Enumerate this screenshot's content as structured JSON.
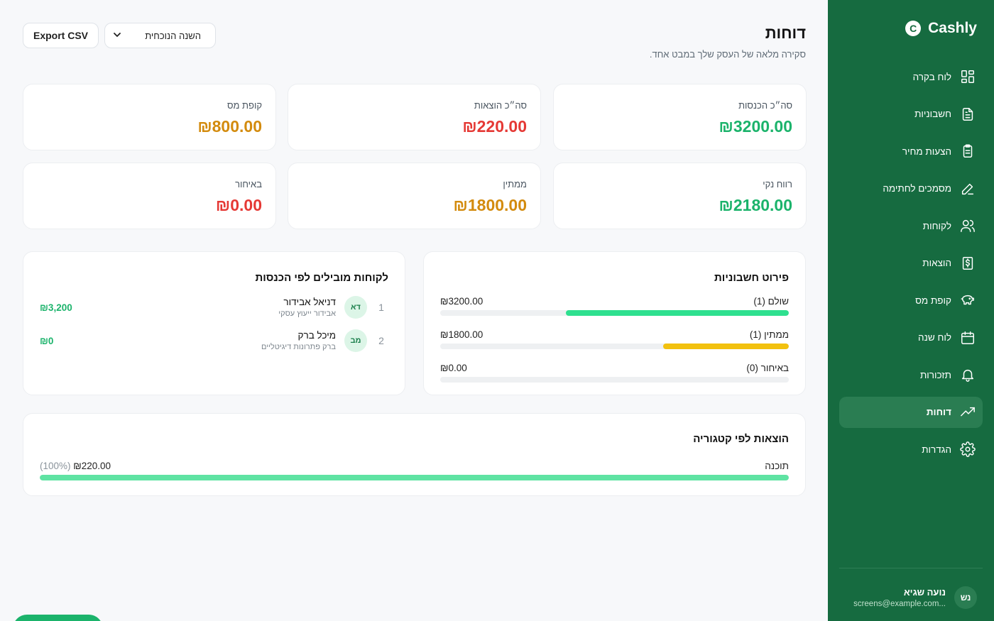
{
  "app": {
    "name": "Cashly",
    "logo_letter": "C"
  },
  "sidebar": {
    "items": [
      {
        "label": "לוח בקרה",
        "icon": "dashboard-grid-icon",
        "active": false
      },
      {
        "label": "חשבוניות",
        "icon": "document-icon",
        "active": false
      },
      {
        "label": "הצעות מחיר",
        "icon": "clipboard-icon",
        "active": false
      },
      {
        "label": "מסמכים לחתימה",
        "icon": "pen-icon",
        "active": false
      },
      {
        "label": "לקוחות",
        "icon": "users-icon",
        "active": false
      },
      {
        "label": "הוצאות",
        "icon": "receipt-icon",
        "active": false
      },
      {
        "label": "קופת מס",
        "icon": "piggy-bank-icon",
        "active": false
      },
      {
        "label": "לוח שנה",
        "icon": "calendar-icon",
        "active": false
      },
      {
        "label": "תזכורות",
        "icon": "bell-icon",
        "active": false
      },
      {
        "label": "דוחות",
        "icon": "trending-up-icon",
        "active": true
      },
      {
        "label": "הגדרות",
        "icon": "gear-icon",
        "active": false
      }
    ],
    "user": {
      "initials": "נש",
      "name": "נועה שגיא",
      "email": "screens@example.com..."
    }
  },
  "header": {
    "title": "דוחות",
    "subtitle": "סקירה מלאה של העסק שלך במבט אחד.",
    "export_label": "Export CSV",
    "period_value": "השנה הנוכחית"
  },
  "stats": [
    {
      "label": "סה״כ הכנסות",
      "value": "₪3200.00",
      "color": "#1bb36b"
    },
    {
      "label": "סה״כ הוצאות",
      "value": "₪220.00",
      "color": "#e53935"
    },
    {
      "label": "קופת מס",
      "value": "₪800.00",
      "color": "#d38b0e"
    },
    {
      "label": "רווח נקי",
      "value": "₪2180.00",
      "color": "#1bb36b"
    },
    {
      "label": "ממתין",
      "value": "₪1800.00",
      "color": "#d38b0e"
    },
    {
      "label": "באיחור",
      "value": "₪0.00",
      "color": "#e53935"
    }
  ],
  "invoice_breakdown": {
    "title": "פירוט חשבוניות",
    "rows": [
      {
        "label": "שולם (1)",
        "amount": "₪3200.00",
        "fraction": 0.64,
        "color": "#2ee08f"
      },
      {
        "label": "ממתין (1)",
        "amount": "₪1800.00",
        "fraction": 0.36,
        "color": "#f2c10f"
      },
      {
        "label": "באיחור (0)",
        "amount": "₪0.00",
        "fraction": 0,
        "color": "#e53935"
      }
    ]
  },
  "top_clients": {
    "title": "לקוחות מובילים לפי הכנסות",
    "rows": [
      {
        "rank": "1",
        "initials": "דא",
        "name": "דניאל אבידור",
        "company": "אבידור ייעוץ עסקי",
        "amount": "₪3,200"
      },
      {
        "rank": "2",
        "initials": "מב",
        "name": "מיכל ברק",
        "company": "ברק פתרונות דיגיטליים",
        "amount": "₪0"
      }
    ]
  },
  "expenses_by_category": {
    "title": "הוצאות לפי קטגוריה",
    "rows": [
      {
        "category": "תוכנה",
        "amount": "₪220.00",
        "percent": "(100%)",
        "fraction": 1.0
      }
    ]
  }
}
